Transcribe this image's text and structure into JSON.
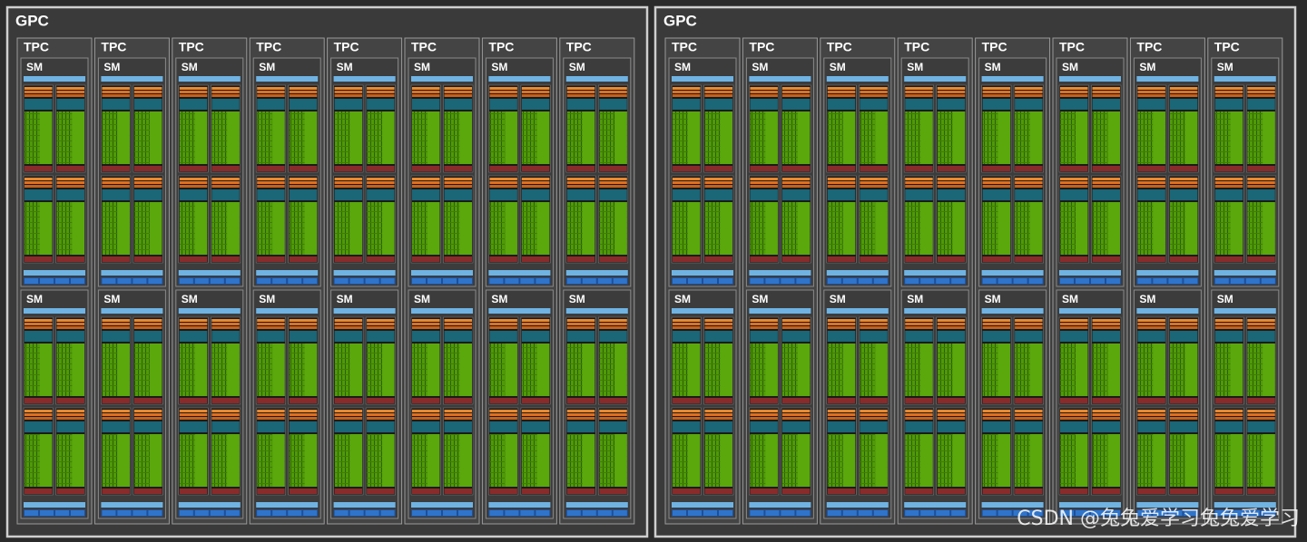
{
  "gpcs": [
    {
      "label": "GPC",
      "tpcs": [
        {
          "label": "TPC",
          "sms": [
            {
              "label": "SM"
            },
            {
              "label": "SM"
            }
          ]
        },
        {
          "label": "TPC",
          "sms": [
            {
              "label": "SM"
            },
            {
              "label": "SM"
            }
          ]
        },
        {
          "label": "TPC",
          "sms": [
            {
              "label": "SM"
            },
            {
              "label": "SM"
            }
          ]
        },
        {
          "label": "TPC",
          "sms": [
            {
              "label": "SM"
            },
            {
              "label": "SM"
            }
          ]
        },
        {
          "label": "TPC",
          "sms": [
            {
              "label": "SM"
            },
            {
              "label": "SM"
            }
          ]
        },
        {
          "label": "TPC",
          "sms": [
            {
              "label": "SM"
            },
            {
              "label": "SM"
            }
          ]
        },
        {
          "label": "TPC",
          "sms": [
            {
              "label": "SM"
            },
            {
              "label": "SM"
            }
          ]
        },
        {
          "label": "TPC",
          "sms": [
            {
              "label": "SM"
            },
            {
              "label": "SM"
            }
          ]
        }
      ]
    },
    {
      "label": "GPC",
      "tpcs": [
        {
          "label": "TPC",
          "sms": [
            {
              "label": "SM"
            },
            {
              "label": "SM"
            }
          ]
        },
        {
          "label": "TPC",
          "sms": [
            {
              "label": "SM"
            },
            {
              "label": "SM"
            }
          ]
        },
        {
          "label": "TPC",
          "sms": [
            {
              "label": "SM"
            },
            {
              "label": "SM"
            }
          ]
        },
        {
          "label": "TPC",
          "sms": [
            {
              "label": "SM"
            },
            {
              "label": "SM"
            }
          ]
        },
        {
          "label": "TPC",
          "sms": [
            {
              "label": "SM"
            },
            {
              "label": "SM"
            }
          ]
        },
        {
          "label": "TPC",
          "sms": [
            {
              "label": "SM"
            },
            {
              "label": "SM"
            }
          ]
        },
        {
          "label": "TPC",
          "sms": [
            {
              "label": "SM"
            },
            {
              "label": "SM"
            }
          ]
        },
        {
          "label": "TPC",
          "sms": [
            {
              "label": "SM"
            },
            {
              "label": "SM"
            }
          ]
        }
      ]
    }
  ],
  "watermark": "CSDN @兔兔爱学习兔兔爱学习"
}
